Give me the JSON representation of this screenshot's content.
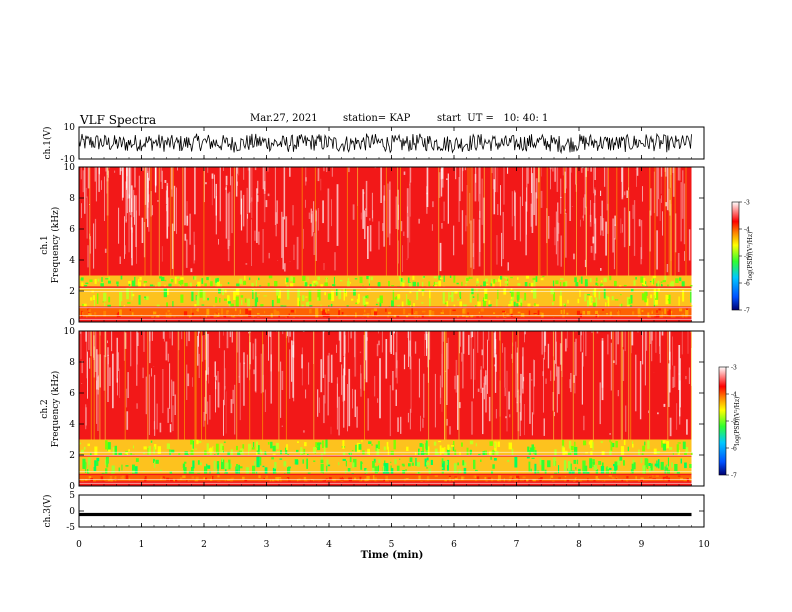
{
  "header": {
    "title": "VLF Spectra",
    "date": "Mar.27, 2021",
    "station": "station= KAP",
    "start": "start  UT =   10: 40: 1"
  },
  "colors": {
    "waveform": "#000000",
    "colormap": [
      "#000070",
      "#0050ff",
      "#00c8ff",
      "#30ff30",
      "#ffff00",
      "#ff8000",
      "#ff0000",
      "#ffffff"
    ]
  },
  "chart_data": [
    {
      "type": "line",
      "panel": "ch1-waveform",
      "ylabel": "ch.1(V)",
      "ylim": [
        -10,
        10
      ],
      "yticks": [
        "10",
        "-10"
      ],
      "xlim": [
        0,
        10
      ]
    },
    {
      "type": "heatmap",
      "panel": "ch1-spectrogram",
      "ylabel_line1": "ch.1",
      "ylabel_line2": "Frequency  (kHz)",
      "ylim": [
        0,
        10
      ],
      "yticks": [
        "0",
        "2",
        "4",
        "6",
        "8",
        "10"
      ],
      "xlim": [
        0,
        10
      ],
      "data_end_min": 9.8,
      "bands_khz": [
        {
          "range": [
            2.3,
            3.0
          ],
          "level": "green-yellow"
        },
        {
          "range": [
            1.0,
            2.2
          ],
          "level": "green-yellow"
        },
        {
          "range": [
            0.3,
            0.9
          ],
          "level": "orange"
        }
      ],
      "colorbar": {
        "label": "log(PSD)(V²/Hz)",
        "ticks": [
          "-3",
          "-4",
          "-5",
          "-6",
          "-7"
        ],
        "range": [
          -7,
          -3
        ]
      }
    },
    {
      "type": "heatmap",
      "panel": "ch2-spectrogram",
      "ylabel_line1": "ch.2",
      "ylabel_line2": "Frequency  (kHz)",
      "ylim": [
        0,
        10
      ],
      "yticks": [
        "0",
        "2",
        "4",
        "6",
        "8",
        "10"
      ],
      "xlim": [
        0,
        10
      ],
      "data_end_min": 9.8,
      "bands_khz": [
        {
          "range": [
            2.0,
            3.0
          ],
          "level": "green-yellow"
        },
        {
          "range": [
            0.8,
            1.9
          ],
          "level": "green"
        },
        {
          "range": [
            0.3,
            0.7
          ],
          "level": "orange"
        }
      ],
      "colorbar": {
        "label": "log(PSD)(V²/Hz)",
        "ticks": [
          "-3",
          "-4",
          "-5",
          "-6",
          "-7"
        ],
        "range": [
          -7,
          -3
        ]
      }
    },
    {
      "type": "line",
      "panel": "ch3-waveform",
      "ylabel": "ch.3(V)",
      "ylim": [
        -5,
        5
      ],
      "yticks": [
        "5",
        "0",
        "-5"
      ],
      "xlim": [
        0,
        10
      ],
      "xlabel": "Time  (min)",
      "xticks": [
        "0",
        "1",
        "2",
        "3",
        "4",
        "5",
        "6",
        "7",
        "8",
        "9",
        "10"
      ],
      "signal_level": -1,
      "signal_band": [
        -1.6,
        -0.6
      ]
    }
  ]
}
